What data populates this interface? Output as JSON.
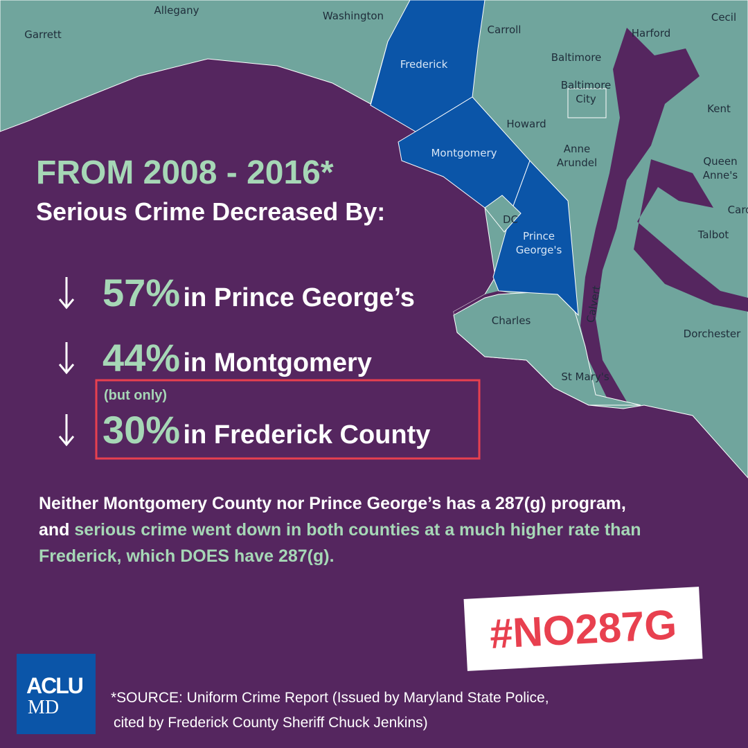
{
  "map": {
    "counties": [
      [
        "Garrett"
      ],
      [
        "Allegany"
      ],
      [
        "Washington"
      ],
      [
        "Frederick"
      ],
      [
        "Carroll"
      ],
      [
        "Harford"
      ],
      [
        "Cecil"
      ],
      [
        "Baltimore"
      ],
      [
        "Baltimore",
        "City"
      ],
      [
        "Kent"
      ],
      [
        "Howard"
      ],
      [
        "Montgomery"
      ],
      [
        "Anne",
        "Arundel"
      ],
      [
        "Queen",
        "Anne's"
      ],
      [
        "Caro"
      ],
      [
        "DC"
      ],
      [
        "Prince",
        "George's"
      ],
      [
        "Talbot"
      ],
      [
        "Charles"
      ],
      [
        "Calvert"
      ],
      [
        "Dorchester"
      ],
      [
        "St Mary's"
      ]
    ]
  },
  "headline": {
    "years": "FROM 2008 - 2016*",
    "subtitle": "Serious Crime Decreased By:"
  },
  "stats": [
    {
      "percent": "57%",
      "text": "in Prince George’s"
    },
    {
      "percent": "44%",
      "text": "in Montgomery"
    },
    {
      "note": "(but only)",
      "percent": "30%",
      "text": "in Frederick County"
    }
  ],
  "paragraph": {
    "plain": "Neither Montgomery County nor Prince George’s has a 287(g) program, and ",
    "highlight": "serious crime went down in both counties at a much higher rate than Frederick, which DOES have 287(g)."
  },
  "hashtag": "#NO287G",
  "logo": {
    "top": "ACLU",
    "bottom": "MD"
  },
  "source": [
    "*SOURCE: Uniform Crime Report (Issued by Maryland State Police,",
    "cited by Frederick County Sheriff Chuck Jenkins)"
  ]
}
